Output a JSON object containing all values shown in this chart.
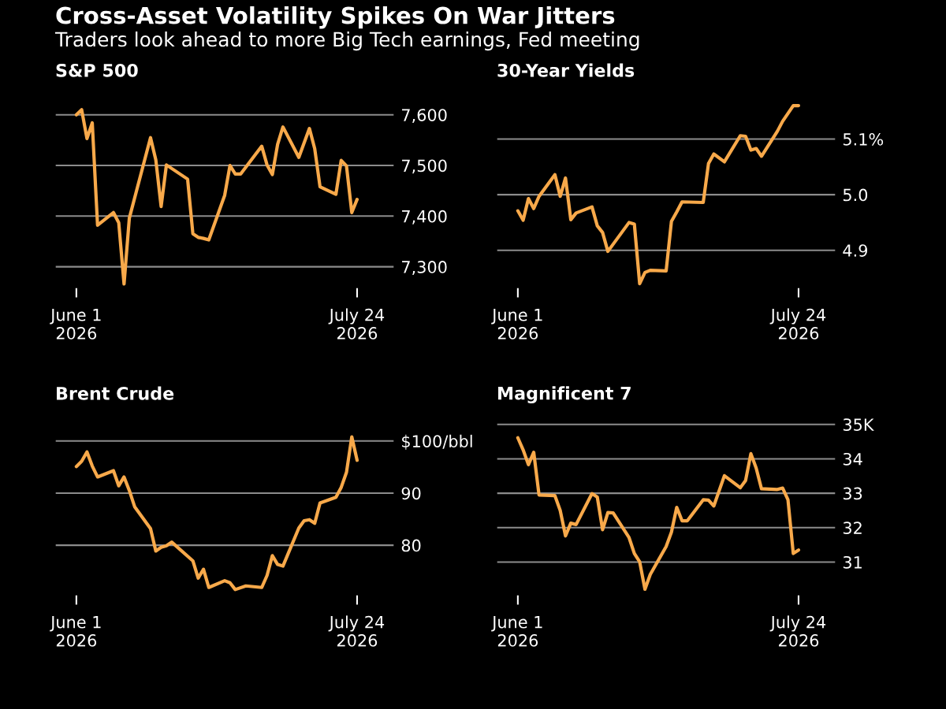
{
  "chart_data": [
    {
      "type": "line",
      "title": "S&P 500",
      "annotations": [
        "Cross-Asset Volatility Spikes On War Jitters",
        "Traders look ahead to more Big Tech earnings, Fed meeting"
      ],
      "color": "#f8a94a",
      "grid": "y",
      "x": [
        "2026-06-01",
        "2026-06-02",
        "2026-06-03",
        "2026-06-04",
        "2026-06-05",
        "2026-06-08",
        "2026-06-09",
        "2026-06-10",
        "2026-06-11",
        "2026-06-15",
        "2026-06-16",
        "2026-06-17",
        "2026-06-18",
        "2026-06-22",
        "2026-06-23",
        "2026-06-24",
        "2026-06-25",
        "2026-06-26",
        "2026-06-29",
        "2026-06-30",
        "2026-07-01",
        "2026-07-02",
        "2026-07-06",
        "2026-07-07",
        "2026-07-08",
        "2026-07-09",
        "2026-07-10",
        "2026-07-13",
        "2026-07-15",
        "2026-07-16",
        "2026-07-17",
        "2026-07-20",
        "2026-07-21",
        "2026-07-22",
        "2026-07-23",
        "2026-07-24"
      ],
      "values": [
        7600,
        7610,
        7553,
        7584,
        7382,
        7407,
        7387,
        7266,
        7396,
        7555,
        7511,
        7419,
        7501,
        7473,
        7365,
        7358,
        7356,
        7353,
        7441,
        7500,
        7483,
        7483,
        7538,
        7501,
        7482,
        7542,
        7576,
        7516,
        7573,
        7533,
        7458,
        7443,
        7510,
        7499,
        7407,
        7433
      ],
      "xlim": [
        "2026-05-28",
        "2026-07-31"
      ],
      "xticks": [
        {
          "value": "2026-06-01",
          "label": "June 1\n2026"
        },
        {
          "value": "2026-07-24",
          "label": "July 24\n2026"
        }
      ],
      "ylim": [
        7259,
        7640
      ],
      "yticks": [
        {
          "value": 7300,
          "label": "7,300"
        },
        {
          "value": 7400,
          "label": "7,400"
        },
        {
          "value": 7500,
          "label": "7,500"
        },
        {
          "value": 7600,
          "label": "7,600"
        }
      ]
    },
    {
      "type": "line",
      "title": "30-Year Yields",
      "color": "#f8a94a",
      "grid": "y",
      "x": [
        "2026-06-01",
        "2026-06-02",
        "2026-06-03",
        "2026-06-04",
        "2026-06-05",
        "2026-06-08",
        "2026-06-09",
        "2026-06-10",
        "2026-06-11",
        "2026-06-12",
        "2026-06-15",
        "2026-06-16",
        "2026-06-17",
        "2026-06-18",
        "2026-06-22",
        "2026-06-23",
        "2026-06-24",
        "2026-06-25",
        "2026-06-26",
        "2026-06-29",
        "2026-06-30",
        "2026-07-01",
        "2026-07-02",
        "2026-07-06",
        "2026-07-07",
        "2026-07-08",
        "2026-07-10",
        "2026-07-13",
        "2026-07-14",
        "2026-07-15",
        "2026-07-16",
        "2026-07-17",
        "2026-07-20",
        "2026-07-21",
        "2026-07-23",
        "2026-07-24"
      ],
      "values": [
        4.971,
        4.954,
        4.993,
        4.975,
        4.997,
        5.036,
        4.997,
        5.03,
        4.955,
        4.967,
        4.978,
        4.944,
        4.932,
        4.898,
        4.95,
        4.947,
        4.84,
        4.86,
        4.864,
        4.863,
        4.952,
        4.969,
        4.987,
        4.986,
        5.056,
        5.073,
        5.059,
        5.106,
        5.105,
        5.08,
        5.083,
        5.069,
        5.114,
        5.132,
        5.16,
        5.16
      ],
      "xlim": [
        "2026-05-28",
        "2026-07-31"
      ],
      "xticks": [
        {
          "value": "2026-06-01",
          "label": "June 1\n2026"
        },
        {
          "value": "2026-07-24",
          "label": "July 24\n2026"
        }
      ],
      "ylim": [
        4.833,
        5.18
      ],
      "yticks": [
        {
          "value": 4.9,
          "label": "4.9"
        },
        {
          "value": 5.0,
          "label": "5.0"
        },
        {
          "value": 5.1,
          "label": "5.1%"
        }
      ]
    },
    {
      "type": "line",
      "title": "Brent Crude",
      "color": "#f8a94a",
      "grid": "y",
      "x": [
        "2026-06-01",
        "2026-06-02",
        "2026-06-03",
        "2026-06-04",
        "2026-06-05",
        "2026-06-08",
        "2026-06-09",
        "2026-06-10",
        "2026-06-11",
        "2026-06-12",
        "2026-06-15",
        "2026-06-16",
        "2026-06-17",
        "2026-06-18",
        "2026-06-19",
        "2026-06-23",
        "2026-06-24",
        "2026-06-25",
        "2026-06-26",
        "2026-06-29",
        "2026-06-30",
        "2026-07-01",
        "2026-07-03",
        "2026-07-06",
        "2026-07-07",
        "2026-07-08",
        "2026-07-09",
        "2026-07-10",
        "2026-07-13",
        "2026-07-14",
        "2026-07-15",
        "2026-07-16",
        "2026-07-17",
        "2026-07-20",
        "2026-07-21",
        "2026-07-22",
        "2026-07-23",
        "2026-07-24"
      ],
      "values": [
        95.1,
        96.1,
        97.9,
        95.2,
        93.1,
        94.3,
        91.4,
        93.1,
        90.5,
        87.4,
        83.2,
        78.9,
        79.6,
        79.9,
        80.6,
        77.0,
        73.7,
        75.4,
        71.9,
        73.2,
        72.8,
        71.5,
        72.2,
        71.9,
        74.2,
        78.0,
        76.3,
        76.0,
        83.3,
        84.7,
        84.9,
        84.2,
        88.1,
        89.2,
        91.1,
        94.0,
        100.8,
        96.3
      ],
      "xlim": [
        "2026-05-28",
        "2026-07-31"
      ],
      "xticks": [
        {
          "value": "2026-06-01",
          "label": "June 1\n2026"
        },
        {
          "value": "2026-07-24",
          "label": "July 24\n2026"
        }
      ],
      "ylim": [
        70.5,
        104.5
      ],
      "yticks": [
        80,
        90,
        {
          "value": 100,
          "label": "$100/bbl"
        }
      ]
    },
    {
      "type": "line",
      "title": "Magnificent 7",
      "color": "#f8a94a",
      "grid": "y",
      "x": [
        "2026-06-01",
        "2026-06-02",
        "2026-06-03",
        "2026-06-04",
        "2026-06-05",
        "2026-06-08",
        "2026-06-09",
        "2026-06-10",
        "2026-06-11",
        "2026-06-12",
        "2026-06-15",
        "2026-06-16",
        "2026-06-17",
        "2026-06-18",
        "2026-06-19",
        "2026-06-22",
        "2026-06-23",
        "2026-06-24",
        "2026-06-25",
        "2026-06-26",
        "2026-06-29",
        "2026-06-30",
        "2026-07-01",
        "2026-07-02",
        "2026-07-03",
        "2026-07-06",
        "2026-07-07",
        "2026-07-08",
        "2026-07-10",
        "2026-07-13",
        "2026-07-14",
        "2026-07-15",
        "2026-07-16",
        "2026-07-17",
        "2026-07-20",
        "2026-07-21",
        "2026-07-22",
        "2026-07-23",
        "2026-07-24"
      ],
      "values": [
        34.61,
        34.26,
        33.83,
        34.19,
        32.95,
        32.93,
        32.5,
        31.76,
        32.13,
        32.09,
        32.99,
        32.89,
        31.94,
        32.44,
        32.43,
        31.71,
        31.25,
        31.01,
        30.21,
        30.64,
        31.45,
        31.87,
        32.59,
        32.2,
        32.2,
        32.81,
        32.8,
        32.63,
        33.51,
        33.16,
        33.37,
        34.15,
        33.73,
        33.13,
        33.11,
        33.15,
        32.81,
        31.25,
        31.35
      ],
      "xlim": [
        "2026-05-28",
        "2026-07-31"
      ],
      "xticks": [
        {
          "value": "2026-06-01",
          "label": "June 1\n2026"
        },
        {
          "value": "2026-07-24",
          "label": "July 24\n2026"
        }
      ],
      "ylim": [
        30.05,
        35.2
      ],
      "yticks": [
        31,
        32,
        33,
        34,
        {
          "value": 35,
          "label": "35K"
        }
      ]
    }
  ]
}
